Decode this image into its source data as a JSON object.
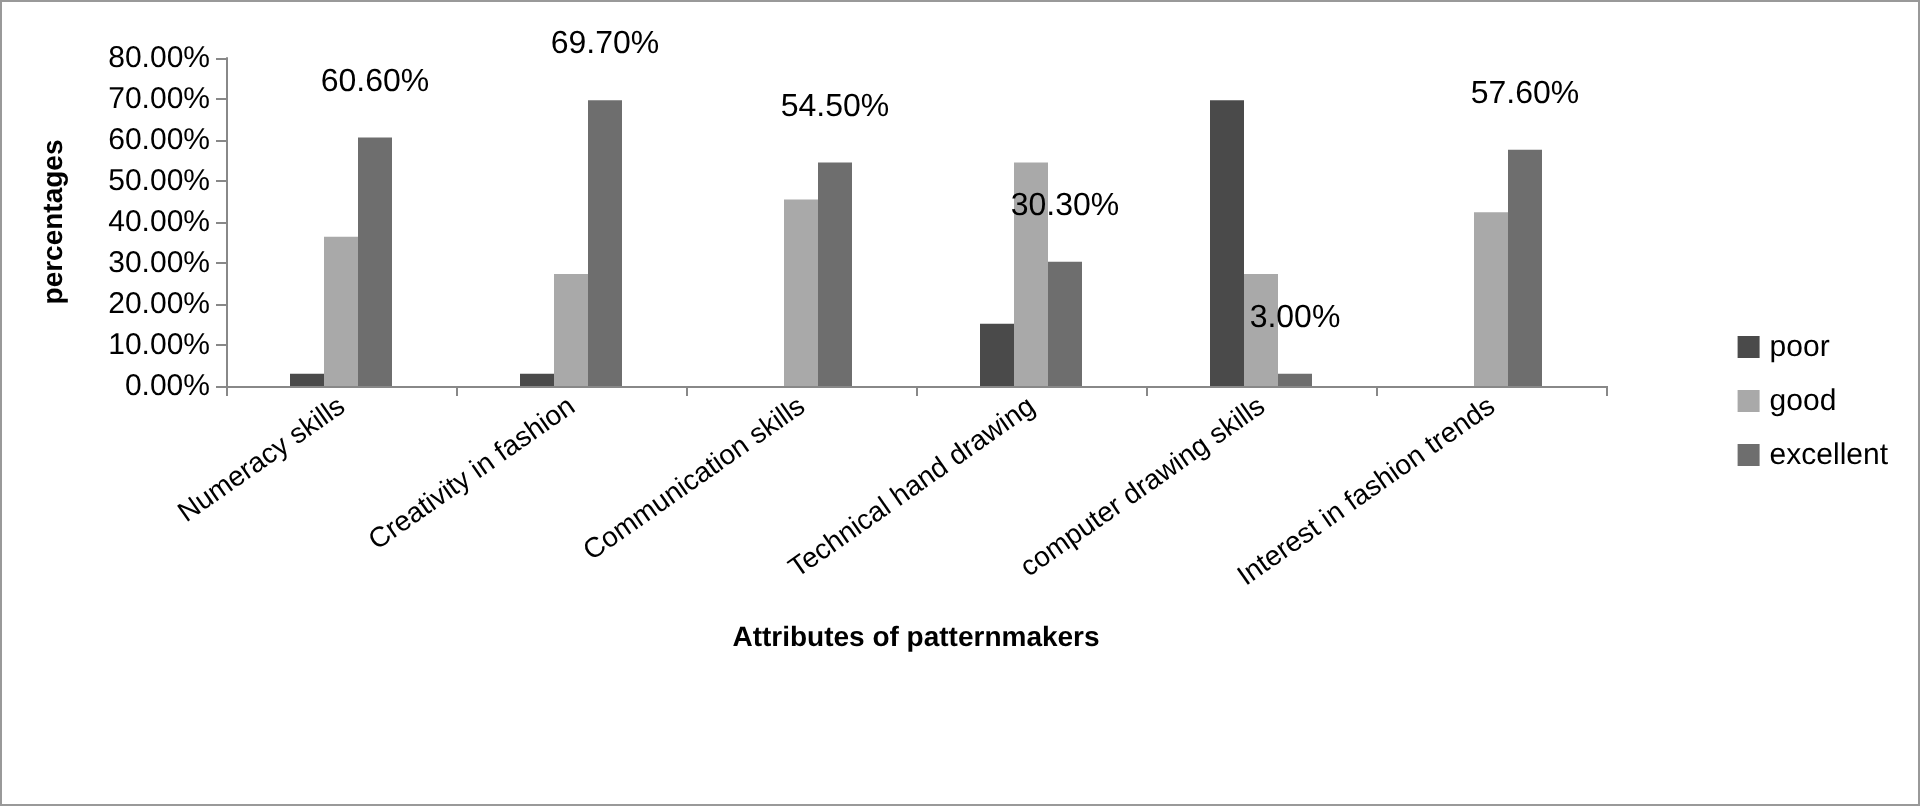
{
  "chart_data": {
    "type": "bar",
    "xlabel": "Attributes of patternmakers",
    "ylabel": "percentages",
    "categories": [
      "Numeracy skills",
      "Creativity in fashion",
      "Communication skills",
      "Technical hand drawing",
      "computer drawing skills",
      "Interest in fashion trends"
    ],
    "series": [
      {
        "name": "poor",
        "color": "#4a4a4a",
        "values": [
          3.0,
          3.0,
          null,
          15.2,
          69.7,
          null
        ]
      },
      {
        "name": "good",
        "color": "#a9a9a9",
        "values": [
          36.4,
          27.3,
          45.5,
          54.5,
          27.3,
          42.4
        ]
      },
      {
        "name": "excellent",
        "color": "#6e6e6e",
        "values": [
          60.6,
          69.7,
          54.5,
          30.3,
          3.0,
          57.6
        ],
        "value_labels": [
          "60.60%",
          "69.70%",
          "54.50%",
          "30.30%",
          "3.00%",
          "57.60%"
        ]
      }
    ],
    "ylim": [
      0,
      80
    ],
    "yticks": [
      {
        "value": 0,
        "label": "0.00%"
      },
      {
        "value": 10,
        "label": "10.00%"
      },
      {
        "value": 20,
        "label": "20.00%"
      },
      {
        "value": 30,
        "label": "30.00%"
      },
      {
        "value": 40,
        "label": "40.00%"
      },
      {
        "value": 50,
        "label": "50.00%"
      },
      {
        "value": 60,
        "label": "60.00%"
      },
      {
        "value": 70,
        "label": "70.00%"
      },
      {
        "value": 80,
        "label": "80.00%"
      }
    ],
    "grid": false,
    "legend": "right"
  }
}
